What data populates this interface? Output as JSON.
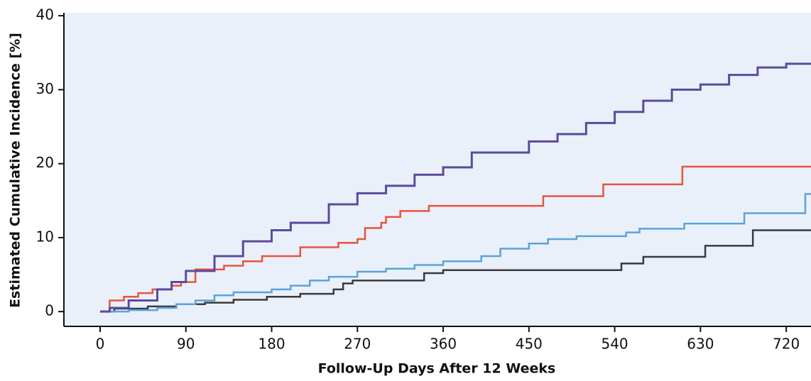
{
  "chart_data": {
    "type": "line",
    "drawstyle": "steps-post",
    "x_label": "Follow-Up Days After 12 Weeks",
    "y_label": "Estimated Cumulative Incidence [%]",
    "xlim": [
      -38,
      746
    ],
    "xticks": [
      0,
      90,
      180,
      270,
      360,
      450,
      540,
      630,
      720
    ],
    "ylim": [
      -2,
      40.4
    ],
    "yticks": [
      0,
      10,
      20,
      30,
      40
    ],
    "background": "#eaf0fa",
    "series": [
      {
        "color": "#5c4a9c",
        "x": [
          0,
          10,
          30,
          60,
          75,
          90,
          120,
          150,
          180,
          200,
          240,
          270,
          300,
          330,
          360,
          390,
          450,
          480,
          510,
          540,
          570,
          600,
          630,
          660,
          690,
          720,
          746
        ],
        "values": [
          0,
          0.5,
          1.5,
          3,
          4,
          5.5,
          7.5,
          9.5,
          11,
          12,
          14.5,
          16,
          17,
          18.5,
          19.5,
          21.5,
          23,
          24,
          25.5,
          27,
          28.5,
          30,
          30.7,
          32,
          33,
          33.5,
          33.5
        ]
      },
      {
        "color": "#e8543f",
        "x": [
          0,
          10,
          25,
          40,
          55,
          75,
          85,
          100,
          130,
          150,
          170,
          210,
          250,
          270,
          278,
          295,
          300,
          315,
          345,
          465,
          528,
          611,
          746
        ],
        "values": [
          0,
          1.5,
          2,
          2.5,
          3,
          3.5,
          4,
          5.7,
          6.2,
          6.8,
          7.5,
          8.7,
          9.3,
          9.8,
          11.3,
          12,
          12.8,
          13.6,
          14.3,
          15.6,
          17.2,
          19.6,
          19.6
        ]
      },
      {
        "color": "#5aa4d8",
        "x": [
          0,
          30,
          60,
          80,
          100,
          120,
          140,
          180,
          200,
          220,
          240,
          270,
          300,
          330,
          360,
          400,
          420,
          450,
          470,
          500,
          552,
          566,
          613,
          676,
          740,
          746
        ],
        "values": [
          0,
          0.2,
          0.5,
          1,
          1.5,
          2.2,
          2.6,
          3,
          3.5,
          4.2,
          4.7,
          5.4,
          5.8,
          6.3,
          6.8,
          7.5,
          8.5,
          9.2,
          9.8,
          10.2,
          10.7,
          11.2,
          11.9,
          13.3,
          15.9,
          15.9
        ]
      },
      {
        "color": "#3a3a3a",
        "x": [
          0,
          15,
          50,
          80,
          110,
          140,
          175,
          210,
          245,
          255,
          265,
          340,
          360,
          547,
          570,
          635,
          685,
          746
        ],
        "values": [
          0,
          0.4,
          0.7,
          1,
          1.2,
          1.6,
          2,
          2.4,
          3,
          3.8,
          4.2,
          5.2,
          5.6,
          6.5,
          7.4,
          8.9,
          11,
          11
        ]
      }
    ]
  }
}
